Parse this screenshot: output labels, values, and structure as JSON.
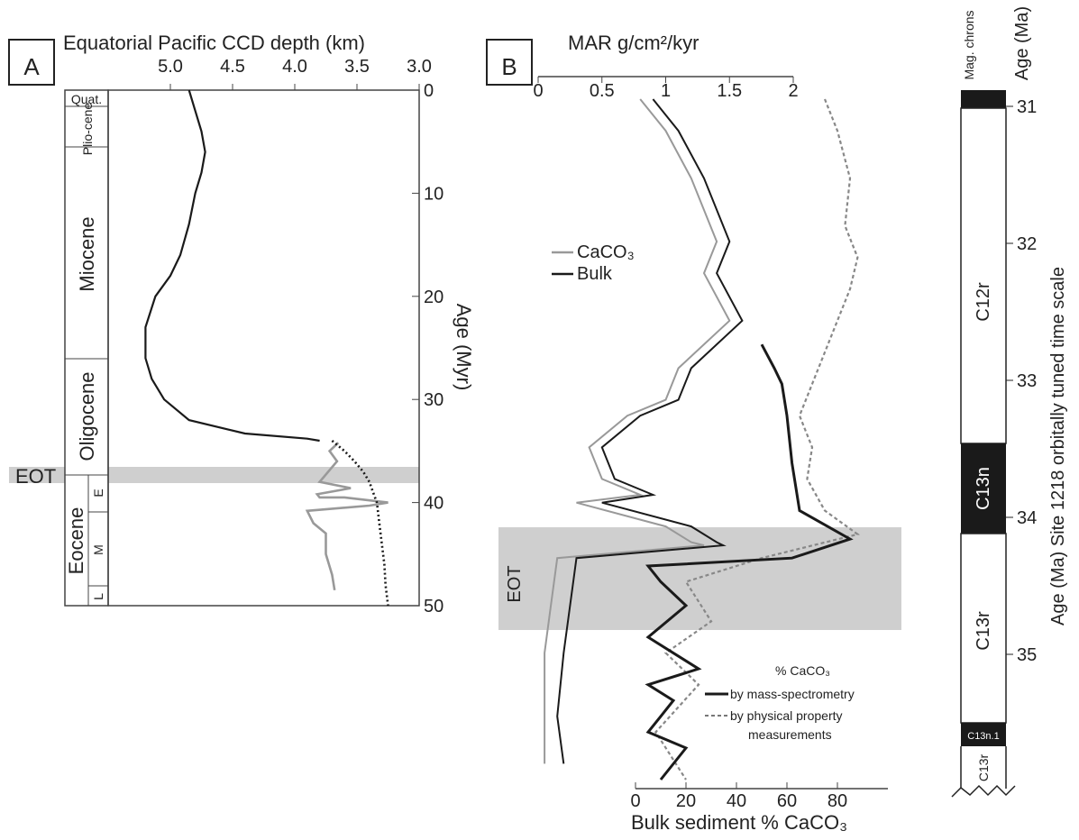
{
  "panel_a": {
    "letter": "A",
    "title": "Equatorial Pacific CCD depth (km)",
    "depth_ticks": [
      "5.0",
      "4.5",
      "4.0",
      "3.5",
      "3.0"
    ],
    "age_ticks": [
      "0",
      "10",
      "20",
      "30",
      "40",
      "50"
    ],
    "age_label": "Age (Myr)",
    "eot_label": "EOT",
    "epochs": [
      "Quat.",
      "Plio-cene",
      "Miocene",
      "Oligocene",
      "Eocene"
    ],
    "sub_epochs": [
      "E",
      "M",
      "L"
    ]
  },
  "panel_b": {
    "letter": "B",
    "top_axis_label": "MAR g/cm²/kyr",
    "top_ticks": [
      "0",
      "0.5",
      "1",
      "1.5",
      "2"
    ],
    "bottom_axis_label": "Bulk sediment % CaCO₃",
    "bottom_ticks": [
      "0",
      "20",
      "40",
      "60",
      "80"
    ],
    "legend_caco3": "CaCO₃",
    "legend_bulk": "Bulk",
    "eot_label": "EOT",
    "legend2_title": "% CaCO₃",
    "legend2_mass": "by mass-spectrometry",
    "legend2_phys_1": "by physical property",
    "legend2_phys_2": "measurements"
  },
  "timescale": {
    "header_chrons": "Mag. chrons",
    "header_age": "Age (Ma)",
    "age_ticks": [
      "31",
      "32",
      "33",
      "34",
      "35"
    ],
    "chrons": [
      "C12r",
      "C13n",
      "C13r",
      "C13n.1",
      "C13r"
    ],
    "side_label": "Age (Ma) Site 1218 orbitally tuned time scale"
  },
  "colors": {
    "line_dark": "#1a1a1a",
    "line_grey": "#999999",
    "eot_band": "#cfcfcf",
    "chron_black": "#1a1a1a"
  },
  "chart_data": [
    {
      "type": "line",
      "title": "Equatorial Pacific CCD depth (km)",
      "xlabel": "Equatorial Pacific CCD depth (km)",
      "ylabel": "Age (Myr)",
      "xlim": [
        5.5,
        3.0
      ],
      "ylim": [
        0,
        50
      ],
      "series": [
        {
          "x": [
            4.85,
            4.8,
            4.75,
            4.72,
            4.75,
            4.8,
            4.85,
            4.92,
            5.0,
            5.12,
            5.2,
            5.2,
            5.15,
            5.05,
            4.85,
            4.4,
            3.9,
            3.8
          ],
          "y": [
            0,
            2,
            4,
            6,
            8,
            10,
            13,
            16,
            18,
            20,
            23,
            26,
            28,
            30,
            32,
            33.3,
            33.8,
            34.0
          ]
        },
        {
          "x": [
            3.65,
            3.72,
            3.66,
            3.8,
            3.55,
            3.82,
            3.8,
            3.6,
            3.25,
            3.4,
            3.9,
            3.85,
            3.75,
            3.75,
            3.7,
            3.68
          ],
          "y": [
            34.2,
            35,
            36,
            38,
            38.6,
            39.2,
            39.5,
            39.5,
            40,
            40.3,
            40.8,
            42,
            43,
            45,
            47,
            48.5
          ]
        },
        {
          "x": [
            3.7,
            3.6,
            3.52,
            3.45,
            3.4,
            3.37,
            3.34,
            3.32,
            3.3,
            3.28,
            3.27,
            3.25
          ],
          "y": [
            34,
            35,
            36,
            37,
            38,
            39,
            40,
            42,
            44,
            46,
            48,
            50
          ]
        }
      ],
      "annotations": [
        "EOT"
      ]
    },
    {
      "type": "line",
      "xlabel": "MAR g/cm²/kyr",
      "xlim": [
        0,
        2
      ],
      "ylim": [
        31,
        35.3
      ],
      "series": [
        {
          "name": "CaCO3",
          "x": [
            0.8,
            1.0,
            1.2,
            1.4,
            1.3,
            1.5,
            1.1,
            1.0,
            0.7,
            0.4,
            0.5,
            0.8,
            0.3,
            1.0,
            1.2,
            1.3,
            0.15,
            0.1,
            0.05,
            0.05,
            0.05
          ],
          "y": [
            31.0,
            31.2,
            31.5,
            31.9,
            32.1,
            32.4,
            32.7,
            32.9,
            33.0,
            33.2,
            33.4,
            33.5,
            33.55,
            33.7,
            33.8,
            33.82,
            33.9,
            34.2,
            34.5,
            34.9,
            35.2
          ]
        },
        {
          "name": "Bulk",
          "x": [
            0.9,
            1.1,
            1.3,
            1.5,
            1.4,
            1.6,
            1.2,
            1.1,
            0.8,
            0.5,
            0.6,
            0.9,
            0.5,
            1.2,
            1.4,
            1.45,
            0.3,
            0.25,
            0.2,
            0.15,
            0.2
          ],
          "y": [
            31.0,
            31.2,
            31.5,
            31.9,
            32.1,
            32.4,
            32.7,
            32.9,
            33.0,
            33.2,
            33.4,
            33.5,
            33.55,
            33.7,
            33.8,
            33.82,
            33.9,
            34.2,
            34.5,
            34.9,
            35.2
          ]
        }
      ]
    },
    {
      "type": "line",
      "xlabel": "Bulk sediment % CaCO₃",
      "xlim": [
        0,
        100
      ],
      "series": [
        {
          "name": "by mass-spectrometry",
          "x": [
            50,
            55,
            58,
            60,
            62,
            65,
            85,
            62,
            5,
            10,
            20,
            5,
            25,
            5,
            15,
            10,
            5,
            20,
            10
          ],
          "y": [
            32.55,
            32.7,
            32.8,
            33.0,
            33.3,
            33.6,
            33.78,
            33.9,
            33.95,
            34.05,
            34.2,
            34.4,
            34.6,
            34.7,
            34.8,
            34.9,
            35.0,
            35.1,
            35.3
          ]
        },
        {
          "name": "by physical property measurements",
          "x": [
            75,
            80,
            85,
            83,
            88,
            85,
            80,
            75,
            70,
            65,
            70,
            68,
            75,
            88,
            50,
            20,
            30,
            12,
            25,
            8,
            20
          ],
          "y": [
            31.0,
            31.2,
            31.5,
            31.8,
            32.0,
            32.2,
            32.4,
            32.6,
            32.8,
            33.0,
            33.2,
            33.4,
            33.6,
            33.75,
            33.9,
            34.05,
            34.3,
            34.5,
            34.7,
            35.0,
            35.3
          ]
        }
      ]
    }
  ]
}
